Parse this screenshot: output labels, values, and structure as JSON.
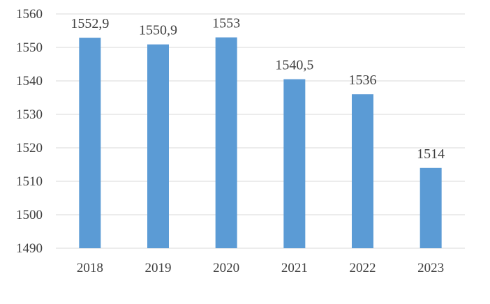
{
  "chart_data": {
    "type": "bar",
    "categories": [
      "2018",
      "2019",
      "2020",
      "2021",
      "2022",
      "2023"
    ],
    "values": [
      1552.9,
      1550.9,
      1553,
      1540.5,
      1536,
      1514
    ],
    "data_labels": [
      "1552,9",
      "1550,9",
      "1553",
      "1540,5",
      "1536",
      "1514"
    ],
    "yticks": [
      "1490",
      "1500",
      "1510",
      "1520",
      "1530",
      "1540",
      "1550",
      "1560"
    ],
    "ylim": [
      1490,
      1560
    ],
    "grid": true,
    "legend": "none",
    "title": "",
    "xlabel": "",
    "ylabel": "",
    "colors": {
      "bar": "#5b9bd5"
    }
  }
}
